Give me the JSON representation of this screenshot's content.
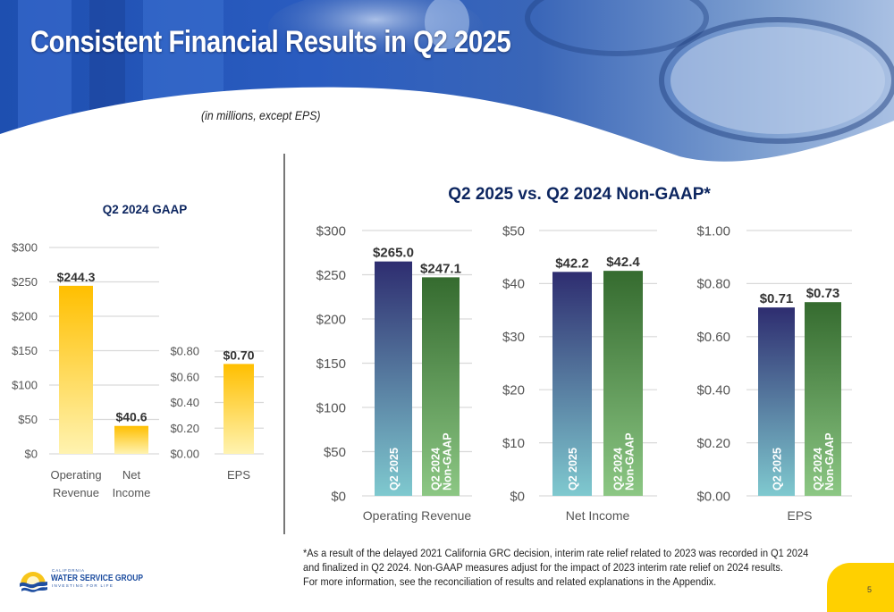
{
  "slide": {
    "title": "Consistent Financial Results in Q2 2025",
    "subtitle": "(in millions, except EPS)",
    "page_number": "5",
    "footnote_lines": [
      "*As a result of the delayed 2021 California GRC decision, interim rate relief related to 2023 was recorded in Q1 2024",
      "and finalized in Q2 2024. Non-GAAP measures adjust for the impact of 2023 interim rate relief on 2024 results.",
      "For more information, see the reconciliation of results and related explanations in the Appendix."
    ],
    "logo": {
      "top_text": "CALIFORNIA",
      "name": "WATER SERVICE GROUP",
      "tagline": "INVESTING FOR LIFE"
    },
    "colors": {
      "title_navy": "#0d2660",
      "gaap_gold_top": "#ffbf00",
      "gaap_gold_bottom": "#fff3b0",
      "q2_2025_top": "#2e2d70",
      "q2_2025_bottom": "#7fc9cf",
      "non_gaap_top": "#356b2f",
      "non_gaap_bottom": "#8cc784",
      "accent_yellow": "#ffd000"
    }
  },
  "chart_data": [
    {
      "id": "gaap-dollars",
      "type": "bar",
      "title": "Q2 2024 GAAP",
      "categories": [
        "Operating Revenue",
        "Net Income"
      ],
      "category_lines": [
        [
          "Operating",
          "Revenue"
        ],
        [
          "Net",
          "Income"
        ]
      ],
      "values": [
        244.3,
        40.6
      ],
      "labels": [
        "$244.3",
        "$40.6"
      ],
      "ylim": [
        0,
        300
      ],
      "yticks": [
        0,
        50,
        100,
        150,
        200,
        250,
        300
      ],
      "ytick_labels": [
        "$0",
        "$50",
        "$100",
        "$150",
        "$200",
        "$250",
        "$300"
      ],
      "grid": true
    },
    {
      "id": "gaap-eps",
      "type": "bar",
      "title": "",
      "categories": [
        "EPS"
      ],
      "category_lines": [
        [
          "EPS"
        ]
      ],
      "values": [
        0.7
      ],
      "labels": [
        "$0.70"
      ],
      "ylim": [
        0,
        0.8
      ],
      "yticks": [
        0,
        0.2,
        0.4,
        0.6,
        0.8
      ],
      "ytick_labels": [
        "$0.00",
        "$0.20",
        "$0.40",
        "$0.60",
        "$0.80"
      ],
      "grid": true
    },
    {
      "id": "nongaap-revenue",
      "type": "bar",
      "group_title": "Q2 2025 vs. Q2 2024 Non-GAAP*",
      "xlabel": "Operating Revenue",
      "series": [
        {
          "name": "Q2 2025",
          "name_lines": [
            "Q2 2025"
          ],
          "values": [
            265.0
          ],
          "labels": [
            "$265.0"
          ]
        },
        {
          "name": "Q2 2024 Non-GAAP",
          "name_lines": [
            "Q2 2024",
            "Non-GAAP"
          ],
          "values": [
            247.1
          ],
          "labels": [
            "$247.1"
          ]
        }
      ],
      "ylim": [
        0,
        300
      ],
      "yticks": [
        0,
        50,
        100,
        150,
        200,
        250,
        300
      ],
      "ytick_labels": [
        "$0",
        "$50",
        "$100",
        "$150",
        "$200",
        "$250",
        "$300"
      ],
      "grid": true
    },
    {
      "id": "nongaap-netincome",
      "type": "bar",
      "xlabel": "Net Income",
      "series": [
        {
          "name": "Q2 2025",
          "name_lines": [
            "Q2 2025"
          ],
          "values": [
            42.2
          ],
          "labels": [
            "$42.2"
          ]
        },
        {
          "name": "Q2 2024 Non-GAAP",
          "name_lines": [
            "Q2 2024",
            "Non-GAAP"
          ],
          "values": [
            42.4
          ],
          "labels": [
            "$42.4"
          ]
        }
      ],
      "ylim": [
        0,
        50
      ],
      "yticks": [
        0,
        10,
        20,
        30,
        40,
        50
      ],
      "ytick_labels": [
        "$0",
        "$10",
        "$20",
        "$30",
        "$40",
        "$50"
      ],
      "grid": true
    },
    {
      "id": "nongaap-eps",
      "type": "bar",
      "xlabel": "EPS",
      "series": [
        {
          "name": "Q2 2025",
          "name_lines": [
            "Q2 2025"
          ],
          "values": [
            0.71
          ],
          "labels": [
            "$0.71"
          ]
        },
        {
          "name": "Q2 2024 Non-GAAP",
          "name_lines": [
            "Q2 2024",
            "Non-GAAP"
          ],
          "values": [
            0.73
          ],
          "labels": [
            "$0.73"
          ]
        }
      ],
      "ylim": [
        0,
        1.0
      ],
      "yticks": [
        0,
        0.2,
        0.4,
        0.6,
        0.8,
        1.0
      ],
      "ytick_labels": [
        "$0.00",
        "$0.20",
        "$0.40",
        "$0.60",
        "$0.80",
        "$1.00"
      ],
      "grid": true
    }
  ]
}
